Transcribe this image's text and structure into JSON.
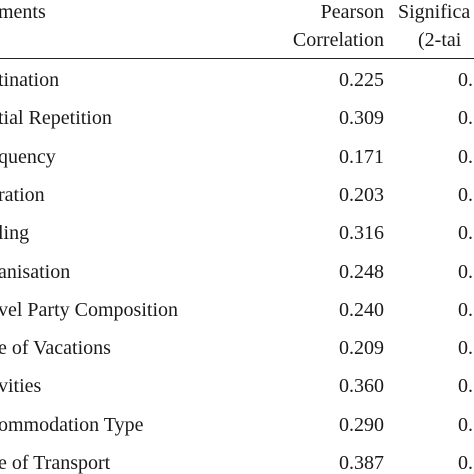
{
  "table": {
    "header": [
      [
        "ments"
      ],
      [
        "Pearson",
        "Correlation"
      ],
      [
        "Significa",
        "(2-tai"
      ]
    ],
    "rows": [
      [
        "tination",
        "0.225",
        "0."
      ],
      [
        "tial Repetition",
        "0.309",
        "0."
      ],
      [
        "quency",
        "0.171",
        "0."
      ],
      [
        "ration",
        "0.203",
        "0."
      ],
      [
        "ling",
        "0.316",
        "0."
      ],
      [
        "anisation",
        "0.248",
        "0."
      ],
      [
        "vel Party Composition",
        "0.240",
        "0."
      ],
      [
        "e of Vacations",
        "0.209",
        "0."
      ],
      [
        "vities",
        "0.360",
        "0."
      ],
      [
        "ommodation Type",
        "0.290",
        "0."
      ],
      [
        "e of Transport",
        "0.387",
        "0."
      ]
    ]
  }
}
